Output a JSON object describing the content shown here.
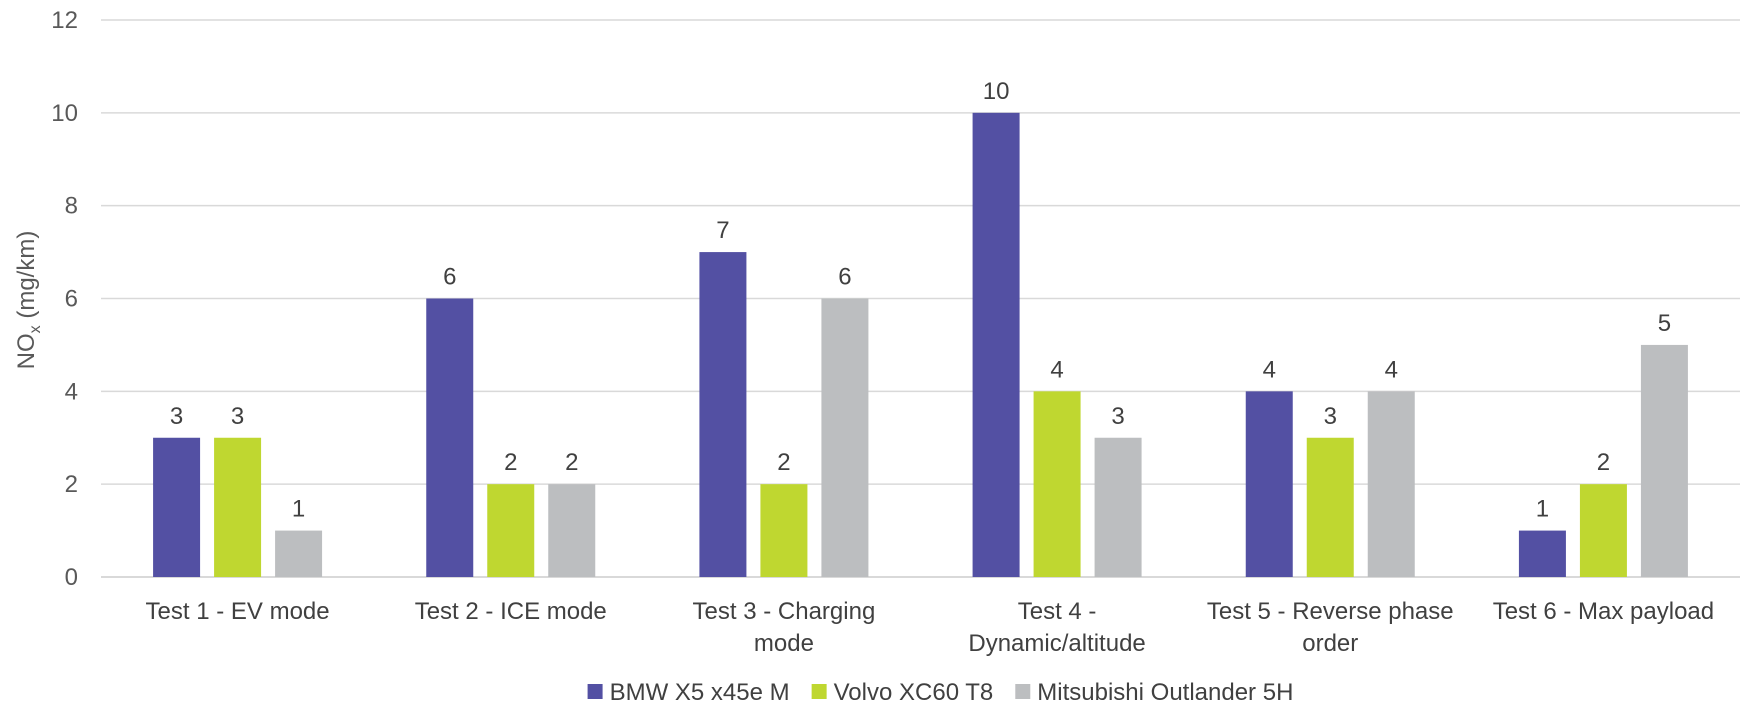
{
  "chart_data": {
    "type": "bar",
    "title": "",
    "xlabel": "",
    "ylabel": "NOx (mg/km)",
    "ylabel_main": "NO",
    "ylabel_sub": "x",
    "ylabel_unit": " (mg/km)",
    "ylim": [
      0,
      12
    ],
    "yticks": [
      0,
      2,
      4,
      6,
      8,
      10,
      12
    ],
    "grid": true,
    "legend_position": "bottom",
    "categories": [
      [
        "Test 1 - EV mode"
      ],
      [
        "Test 2 - ICE mode"
      ],
      [
        "Test 3 - Charging",
        "mode"
      ],
      [
        "Test 4 -",
        "Dynamic/altitude"
      ],
      [
        "Test 5 - Reverse phase",
        "order"
      ],
      [
        "Test 6 - Max payload"
      ]
    ],
    "series": [
      {
        "name": "BMW X5 x45e M",
        "color": "#5350a3",
        "values": [
          3,
          6,
          7,
          10,
          4,
          1
        ]
      },
      {
        "name": "Volvo XC60 T8",
        "color": "#bfd730",
        "values": [
          3,
          2,
          2,
          4,
          3,
          2
        ]
      },
      {
        "name": "Mitsubishi Outlander 5H",
        "color": "#bcbec0",
        "values": [
          1,
          2,
          6,
          3,
          4,
          5
        ]
      }
    ]
  }
}
